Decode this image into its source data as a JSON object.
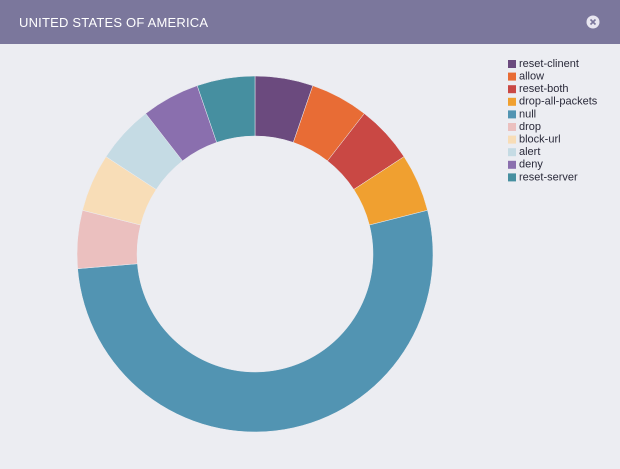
{
  "chart_data": {
    "type": "donut",
    "title": "UNITED STATES OF AMERICA",
    "categories": [
      "reset-clinent",
      "allow",
      "reset-both",
      "drop-all-packets",
      "null",
      "drop",
      "block-url",
      "alert",
      "deny",
      "reset-server"
    ],
    "values": [
      1,
      1,
      1,
      1,
      10,
      1,
      1,
      1,
      1,
      1
    ],
    "colors": [
      "#6b4a7e",
      "#e86c35",
      "#c94844",
      "#f0a030",
      "#5294b2",
      "#ebc0bf",
      "#f8ddb7",
      "#c5dbe4",
      "#8a6fae",
      "#468fa0"
    ],
    "legend": "top-right"
  }
}
